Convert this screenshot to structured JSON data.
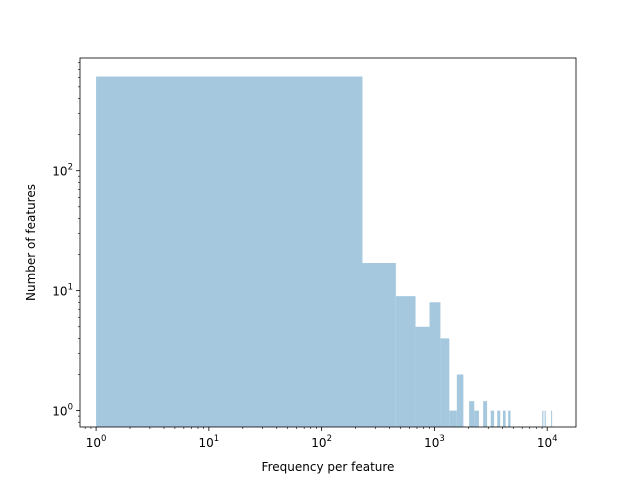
{
  "chart_data": {
    "type": "bar",
    "histogram": true,
    "title": "",
    "xlabel": "Frequency per feature",
    "ylabel": "Number of features",
    "xscale": "log",
    "yscale": "log",
    "xlim": [
      0.72,
      18000
    ],
    "ylim": [
      0.73,
      870
    ],
    "grid": false,
    "legend": "none",
    "x_ticks": [
      {
        "value": 1,
        "label": "10^0"
      },
      {
        "value": 10,
        "label": "10^1"
      },
      {
        "value": 100,
        "label": "10^2"
      },
      {
        "value": 1000,
        "label": "10^3"
      },
      {
        "value": 10000,
        "label": "10^4"
      }
    ],
    "y_ticks": [
      {
        "value": 1,
        "label": "10^0"
      },
      {
        "value": 10,
        "label": "10^1"
      },
      {
        "value": 100,
        "label": "10^2"
      }
    ],
    "color": "#a5c8df",
    "bins": [
      {
        "x0": 1,
        "x1": 230,
        "count": 610
      },
      {
        "x0": 230,
        "x1": 455,
        "count": 17
      },
      {
        "x0": 455,
        "x1": 680,
        "count": 9
      },
      {
        "x0": 680,
        "x1": 905,
        "count": 5
      },
      {
        "x0": 905,
        "x1": 1130,
        "count": 8
      },
      {
        "x0": 1130,
        "x1": 1355,
        "count": 4
      },
      {
        "x0": 1355,
        "x1": 1580,
        "count": 1
      },
      {
        "x0": 1580,
        "x1": 1805,
        "count": 2
      },
      {
        "x0": 1805,
        "x1": 2030,
        "count": 0
      },
      {
        "x0": 2030,
        "x1": 2255,
        "count": 1.2
      },
      {
        "x0": 2255,
        "x1": 2480,
        "count": 1
      },
      {
        "x0": 2480,
        "x1": 2705,
        "count": 0
      },
      {
        "x0": 2705,
        "x1": 2930,
        "count": 1.2
      },
      {
        "x0": 2930,
        "x1": 3155,
        "count": 0
      },
      {
        "x0": 3155,
        "x1": 3380,
        "count": 1
      },
      {
        "x0": 3380,
        "x1": 3605,
        "count": 0
      },
      {
        "x0": 3605,
        "x1": 3830,
        "count": 1
      },
      {
        "x0": 3830,
        "x1": 4055,
        "count": 0
      },
      {
        "x0": 4055,
        "x1": 4280,
        "count": 1
      },
      {
        "x0": 4280,
        "x1": 4505,
        "count": 0
      },
      {
        "x0": 4505,
        "x1": 4730,
        "count": 1
      },
      {
        "x0": 9030,
        "x1": 9255,
        "count": 1
      },
      {
        "x0": 9480,
        "x1": 9705,
        "count": 1
      },
      {
        "x0": 10830,
        "x1": 11055,
        "count": 1
      }
    ]
  }
}
